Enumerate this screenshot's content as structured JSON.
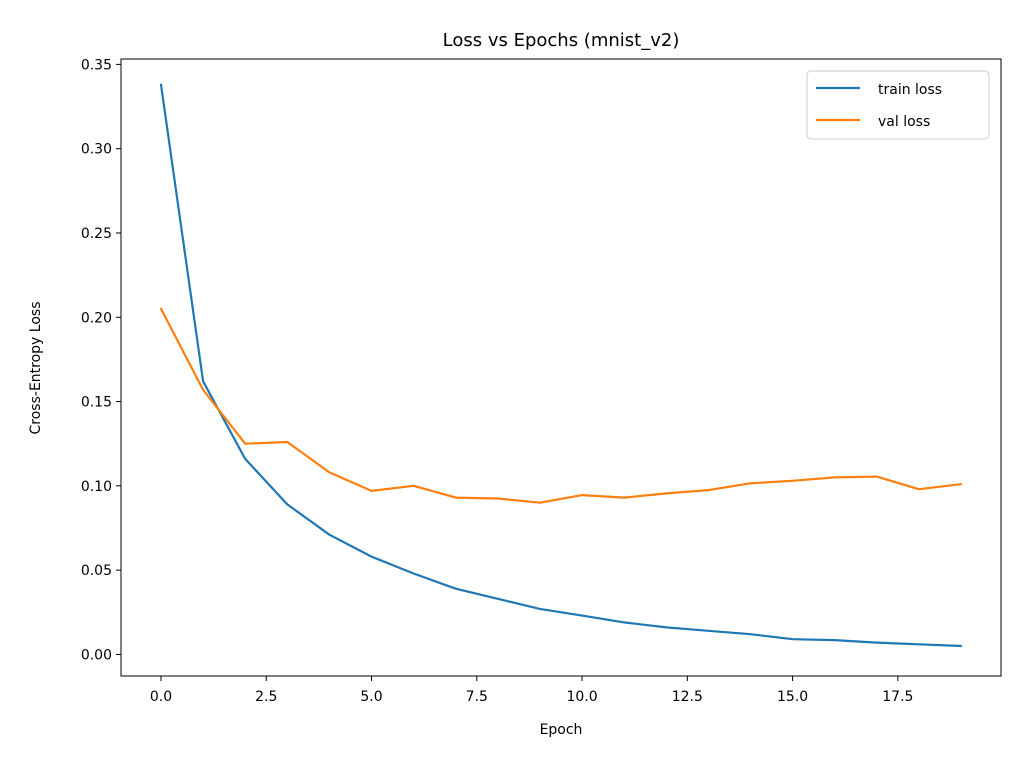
{
  "chart_data": {
    "type": "line",
    "title": "Loss vs Epochs (mnist_v2)",
    "xlabel": "Epoch",
    "ylabel": "Cross-Entropy Loss",
    "xlim": [
      -0.95,
      19.95
    ],
    "ylim": [
      -0.0128,
      0.3532
    ],
    "xticks": [
      0.0,
      2.5,
      5.0,
      7.5,
      10.0,
      12.5,
      15.0,
      17.5
    ],
    "xtick_labels": [
      "0.0",
      "2.5",
      "5.0",
      "7.5",
      "10.0",
      "12.5",
      "15.0",
      "17.5"
    ],
    "yticks": [
      0.0,
      0.05,
      0.1,
      0.15,
      0.2,
      0.25,
      0.3,
      0.35
    ],
    "ytick_labels": [
      "0.00",
      "0.05",
      "0.10",
      "0.15",
      "0.20",
      "0.25",
      "0.30",
      "0.35"
    ],
    "grid": false,
    "legend_position": "top-right",
    "x": [
      0,
      1,
      2,
      3,
      4,
      5,
      6,
      7,
      8,
      9,
      10,
      11,
      12,
      13,
      14,
      15,
      16,
      17,
      18,
      19
    ],
    "series": [
      {
        "name": "train loss",
        "color": "#1f77b4",
        "values": [
          0.338,
          0.162,
          0.116,
          0.089,
          0.071,
          0.058,
          0.048,
          0.039,
          0.033,
          0.027,
          0.023,
          0.019,
          0.016,
          0.014,
          0.012,
          0.009,
          0.0085,
          0.007,
          0.006,
          0.005
        ]
      },
      {
        "name": "val loss",
        "color": "#ff7f0e",
        "values": [
          0.205,
          0.157,
          0.125,
          0.126,
          0.108,
          0.097,
          0.1,
          0.093,
          0.0925,
          0.09,
          0.0945,
          0.093,
          0.0955,
          0.0975,
          0.1015,
          0.103,
          0.105,
          0.1055,
          0.098,
          0.101
        ]
      }
    ]
  }
}
